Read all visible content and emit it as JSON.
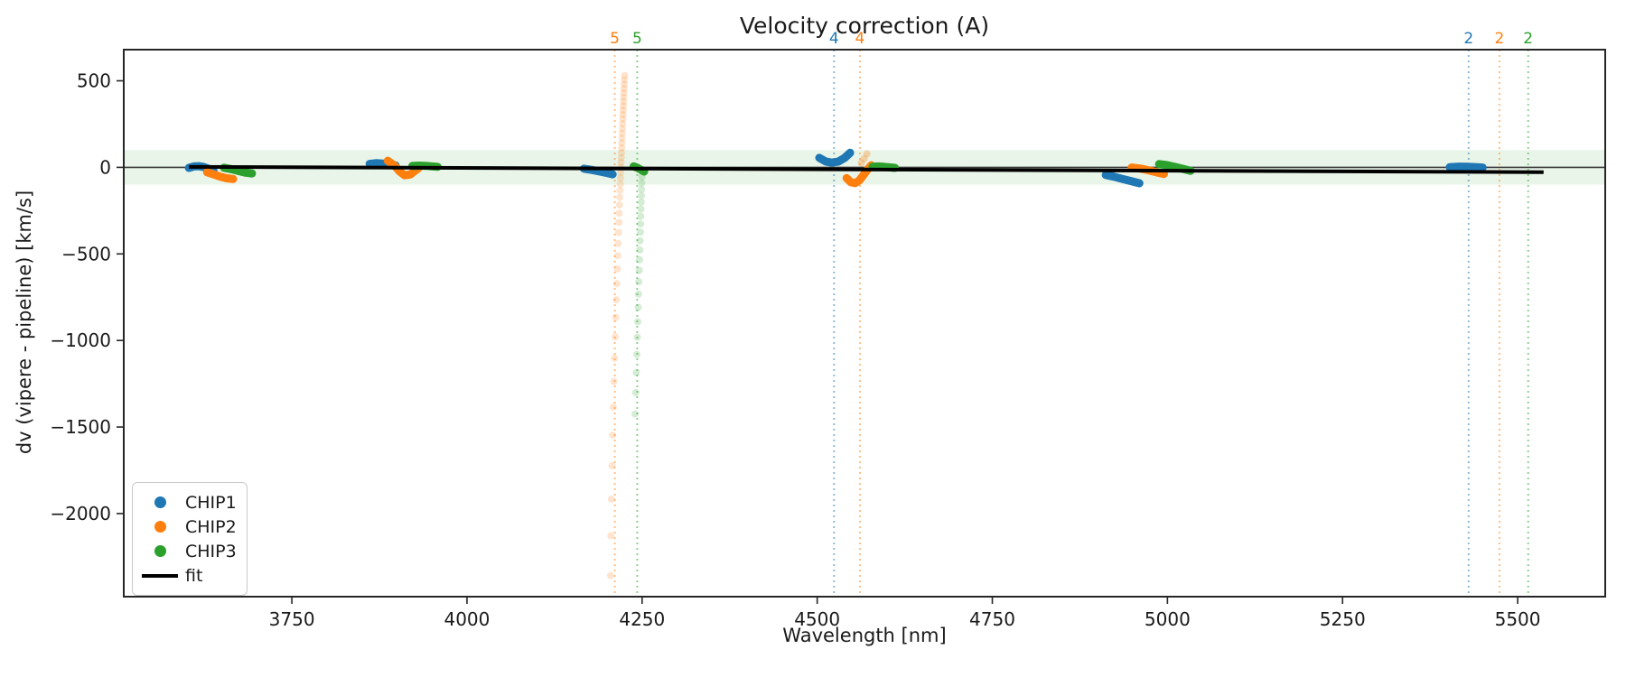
{
  "figure": {
    "title": "Velocity correction (A)",
    "xlabel": "Wavelength [nm]",
    "ylabel": "dv (vipere - pipeline) [km/s]"
  },
  "chart_data": {
    "type": "scatter",
    "title": "Velocity correction (A)",
    "xlabel": "Wavelength [nm]",
    "ylabel": "dv (vipere - pipeline) [km/s]",
    "xlim": [
      3510,
      5625
    ],
    "ylim": [
      -2480,
      680
    ],
    "xticks": [
      3750,
      4000,
      4250,
      4500,
      4750,
      5000,
      5250,
      5500
    ],
    "yticks": [
      {
        "v": 500,
        "label": "500"
      },
      {
        "v": 0,
        "label": "0"
      },
      {
        "v": -500,
        "label": "−500"
      },
      {
        "v": -1000,
        "label": "−1000"
      },
      {
        "v": -1500,
        "label": "−1500"
      },
      {
        "v": -2000,
        "label": "−2000"
      }
    ],
    "band": {
      "ymin": -100,
      "ymax": 100,
      "color": "#2ca02c",
      "alpha": 0.1
    },
    "zero_line": {
      "y": 0,
      "color": "#3a3a3a"
    },
    "fit": {
      "label": "fit",
      "color": "#000000",
      "points": [
        [
          3603,
          3
        ],
        [
          5537,
          -28
        ]
      ]
    },
    "order_lines": [
      {
        "x": 4211,
        "label": "5",
        "color": "#ff7f0e"
      },
      {
        "x": 4243,
        "label": "5",
        "color": "#2ca02c"
      },
      {
        "x": 4524,
        "label": "4",
        "color": "#1f77b4"
      },
      {
        "x": 4561,
        "label": "4",
        "color": "#ff7f0e"
      },
      {
        "x": 5430,
        "label": "2",
        "color": "#1f77b4"
      },
      {
        "x": 5474,
        "label": "2",
        "color": "#ff7f0e"
      },
      {
        "x": 5515,
        "label": "2",
        "color": "#2ca02c"
      }
    ],
    "series": [
      {
        "name": "CHIP1",
        "color": "#1f77b4",
        "clusters": [
          [
            [
              3603,
              -3
            ],
            [
              3610,
              5
            ],
            [
              3617,
              7
            ],
            [
              3624,
              2
            ],
            [
              3631,
              -8
            ],
            [
              3638,
              -18
            ]
          ],
          [
            [
              3861,
              20
            ],
            [
              3870,
              24
            ],
            [
              3880,
              22
            ],
            [
              3890,
              17
            ],
            [
              3898,
              11
            ]
          ],
          [
            [
              4167,
              -8
            ],
            [
              4177,
              -14
            ],
            [
              4187,
              -22
            ],
            [
              4198,
              -31
            ],
            [
              4208,
              -40
            ]
          ],
          [
            [
              4503,
              55
            ],
            [
              4512,
              34
            ],
            [
              4521,
              27
            ],
            [
              4530,
              33
            ],
            [
              4539,
              54
            ],
            [
              4547,
              84
            ]
          ],
          [
            [
              4912,
              -44
            ],
            [
              4924,
              -54
            ],
            [
              4936,
              -67
            ],
            [
              4948,
              -79
            ],
            [
              4960,
              -92
            ]
          ],
          [
            [
              5403,
              1
            ],
            [
              5416,
              4
            ],
            [
              5429,
              3
            ],
            [
              5442,
              1
            ],
            [
              5450,
              -1
            ]
          ]
        ]
      },
      {
        "name": "CHIP2",
        "color": "#ff7f0e",
        "clusters": [
          [
            [
              3629,
              -28
            ],
            [
              3638,
              -40
            ],
            [
              3648,
              -54
            ],
            [
              3657,
              -63
            ],
            [
              3666,
              -67
            ]
          ],
          [
            [
              3887,
              38
            ],
            [
              3896,
              12
            ],
            [
              3904,
              -24
            ],
            [
              3911,
              -46
            ],
            [
              3919,
              -41
            ],
            [
              3927,
              -16
            ],
            [
              3931,
              -4
            ]
          ],
          [
            [
              4542,
              -62
            ],
            [
              4548,
              -86
            ],
            [
              4554,
              -91
            ],
            [
              4560,
              -76
            ],
            [
              4566,
              -45
            ],
            [
              4572,
              -12
            ],
            [
              4577,
              12
            ]
          ],
          [
            [
              4949,
              -1
            ],
            [
              4961,
              -7
            ],
            [
              4972,
              -16
            ],
            [
              4984,
              -28
            ],
            [
              4995,
              -38
            ]
          ]
        ]
      },
      {
        "name": "CHIP3",
        "color": "#2ca02c",
        "clusters": [
          [
            [
              3653,
              -2
            ],
            [
              3663,
              -10
            ],
            [
              3673,
              -20
            ],
            [
              3683,
              -30
            ],
            [
              3693,
              -35
            ]
          ],
          [
            [
              3922,
              8
            ],
            [
              3931,
              10
            ],
            [
              3941,
              9
            ],
            [
              3950,
              6
            ],
            [
              3958,
              3
            ]
          ],
          [
            [
              4238,
              6
            ],
            [
              4243,
              -2
            ],
            [
              4248,
              -13
            ],
            [
              4253,
              -24
            ]
          ],
          [
            [
              4579,
              3
            ],
            [
              4587,
              5
            ],
            [
              4595,
              3
            ],
            [
              4603,
              0
            ],
            [
              4611,
              -3
            ]
          ],
          [
            [
              4988,
              19
            ],
            [
              4999,
              13
            ],
            [
              5010,
              3
            ],
            [
              5021,
              -8
            ],
            [
              5033,
              -20
            ]
          ]
        ]
      }
    ],
    "faded_trails": [
      {
        "series": "CHIP2",
        "color": "#ff7f0e",
        "alpha": 0.2,
        "points": [
          [
            4225.0,
            530
          ],
          [
            4224.7,
            505
          ],
          [
            4224.5,
            480
          ],
          [
            4224.2,
            455
          ],
          [
            4224.0,
            430
          ],
          [
            4223.7,
            405
          ],
          [
            4223.5,
            380
          ],
          [
            4223.2,
            355
          ],
          [
            4223.0,
            330
          ],
          [
            4222.7,
            305
          ],
          [
            4222.5,
            280
          ],
          [
            4222.2,
            252
          ],
          [
            4221.9,
            224
          ],
          [
            4221.6,
            196
          ],
          [
            4221.4,
            168
          ],
          [
            4221.1,
            140
          ],
          [
            4220.8,
            112
          ],
          [
            4220.6,
            84
          ],
          [
            4220.3,
            56
          ],
          [
            4220.0,
            28
          ],
          [
            4219.8,
            0
          ],
          [
            4219.5,
            -30
          ],
          [
            4219.2,
            -62
          ],
          [
            4218.9,
            -96
          ],
          [
            4218.5,
            -133
          ],
          [
            4218.2,
            -173
          ],
          [
            4217.8,
            -217
          ],
          [
            4217.3,
            -265
          ],
          [
            4216.9,
            -318
          ],
          [
            4216.4,
            -376
          ],
          [
            4215.8,
            -440
          ],
          [
            4215.2,
            -510
          ],
          [
            4214.6,
            -587
          ],
          [
            4213.9,
            -672
          ],
          [
            4213.2,
            -765
          ],
          [
            4212.4,
            -867
          ],
          [
            4211.6,
            -979
          ],
          [
            4210.7,
            -1102
          ],
          [
            4209.8,
            -1237
          ],
          [
            4208.9,
            -1385
          ],
          [
            4208.0,
            -1547
          ],
          [
            4207.1,
            -1724
          ],
          [
            4206.2,
            -1917
          ],
          [
            4205.4,
            -2128
          ],
          [
            4205.0,
            -2358
          ]
        ]
      },
      {
        "series": "CHIP3",
        "color": "#2ca02c",
        "alpha": 0.2,
        "points": [
          [
            4250.0,
            -20
          ],
          [
            4249.8,
            -55
          ],
          [
            4249.5,
            -90
          ],
          [
            4249.2,
            -126
          ],
          [
            4249.0,
            -163
          ],
          [
            4248.7,
            -201
          ],
          [
            4248.4,
            -241
          ],
          [
            4248.1,
            -283
          ],
          [
            4247.8,
            -327
          ],
          [
            4247.5,
            -374
          ],
          [
            4247.1,
            -424
          ],
          [
            4246.7,
            -477
          ],
          [
            4246.3,
            -534
          ],
          [
            4245.9,
            -595
          ],
          [
            4245.4,
            -661
          ],
          [
            4244.9,
            -732
          ],
          [
            4244.4,
            -809
          ],
          [
            4243.8,
            -892
          ],
          [
            4243.2,
            -982
          ],
          [
            4242.5,
            -1080
          ],
          [
            4241.7,
            -1186
          ],
          [
            4240.9,
            -1301
          ],
          [
            4240.0,
            -1425
          ]
        ]
      },
      {
        "series": "CHIP2",
        "color": "#ff7f0e",
        "alpha": 0.3,
        "points": [
          [
            4563,
            25
          ],
          [
            4567,
            50
          ],
          [
            4571,
            78
          ]
        ]
      }
    ],
    "legend": {
      "entries": [
        {
          "label": "CHIP1",
          "color": "#1f77b4",
          "marker": "dot"
        },
        {
          "label": "CHIP2",
          "color": "#ff7f0e",
          "marker": "dot"
        },
        {
          "label": "CHIP3",
          "color": "#2ca02c",
          "marker": "dot"
        },
        {
          "label": "fit",
          "color": "#000000",
          "marker": "line"
        }
      ]
    }
  }
}
